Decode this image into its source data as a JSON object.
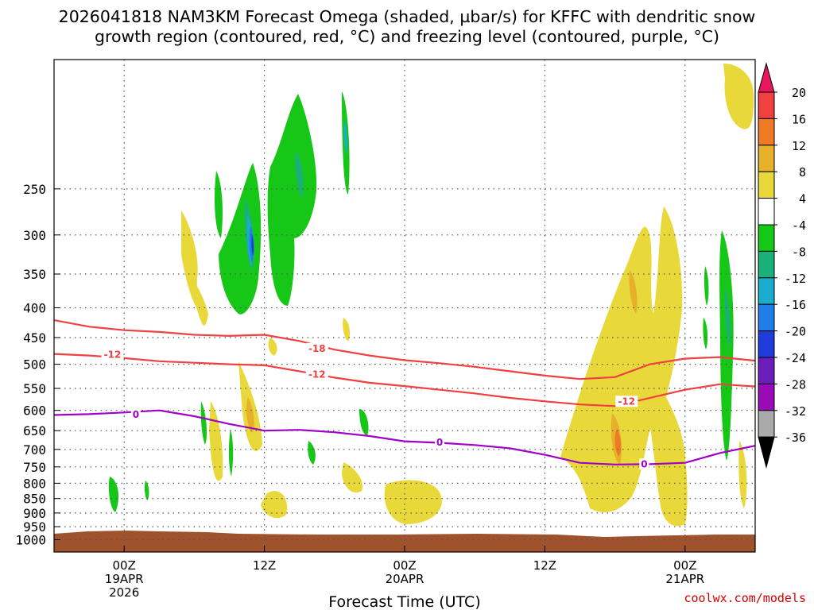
{
  "title": {
    "line1": "2026041818 NAM3KM Forecast Omega (shaded, µbar/s) for KFFC with dendritic snow",
    "line2": "growth region (contoured, red, °C) and freezing level (contoured, purple, °C)"
  },
  "credit": "coolwx.com/models",
  "colors": {
    "red_contour": "#f04040",
    "purple_contour": "#a000c8",
    "ground": "#a0522d",
    "grid": "#555555"
  },
  "chart_data": {
    "type": "heatmap",
    "xlabel": "Forecast Time (UTC)",
    "ylabel": "",
    "x_unit": "hours since 2026-04-18 18Z",
    "xlim": [
      0,
      60
    ],
    "ylim_hPa": [
      1050,
      150
    ],
    "y_scale": "log",
    "grid": true,
    "y_ticks": [
      250,
      300,
      350,
      400,
      450,
      500,
      550,
      600,
      650,
      700,
      750,
      800,
      850,
      900,
      950,
      1000
    ],
    "x_ticks": [
      {
        "x": 6,
        "labels": [
          "00Z",
          "19APR",
          "2026"
        ]
      },
      {
        "x": 18,
        "labels": [
          "12Z",
          "",
          ""
        ]
      },
      {
        "x": 30,
        "labels": [
          "00Z",
          "20APR",
          ""
        ]
      },
      {
        "x": 42,
        "labels": [
          "12Z",
          "",
          ""
        ]
      },
      {
        "x": 54,
        "labels": [
          "00Z",
          "21APR",
          ""
        ]
      }
    ],
    "colorbar": {
      "unit": "µbar/s",
      "labels": [
        "20",
        "16",
        "12",
        "8",
        "4",
        "-4",
        "-8",
        "-12",
        "-16",
        "-20",
        "-24",
        "-28",
        "-32",
        "-36"
      ],
      "colors": [
        "#e8155f",
        "#f04040",
        "#ef7a25",
        "#e6b02a",
        "#e8d83a",
        "#ffffff",
        "#17c717",
        "#1ab07a",
        "#1aaccc",
        "#1f7ee8",
        "#1e3cdb",
        "#6b1ebc",
        "#9a0ab8",
        "#aaaaaa",
        "#000000"
      ]
    },
    "lines": [
      {
        "color": "red",
        "label": "-18",
        "label_at": [
          22.5,
          470
        ],
        "points": [
          [
            0,
            420
          ],
          [
            3,
            431
          ],
          [
            6,
            437
          ],
          [
            9,
            440
          ],
          [
            12,
            445
          ],
          [
            15,
            447
          ],
          [
            18,
            445
          ],
          [
            21,
            456
          ],
          [
            24,
            472
          ],
          [
            27,
            483
          ],
          [
            30,
            492
          ],
          [
            33,
            498
          ],
          [
            36,
            505
          ],
          [
            39,
            514
          ],
          [
            42,
            523
          ],
          [
            45,
            530
          ],
          [
            48,
            526
          ],
          [
            51,
            500
          ],
          [
            54,
            489
          ],
          [
            57,
            486
          ],
          [
            60,
            493
          ]
        ]
      },
      {
        "color": "red",
        "label": "-12",
        "label_at": [
          5,
          481
        ],
        "points": [
          [
            0,
            480
          ],
          [
            3,
            483
          ],
          [
            6,
            488
          ],
          [
            9,
            494
          ],
          [
            12,
            497
          ],
          [
            15,
            500
          ],
          [
            18,
            502
          ],
          [
            21,
            514
          ],
          [
            24,
            527
          ],
          [
            27,
            538
          ],
          [
            30,
            545
          ],
          [
            33,
            553
          ],
          [
            36,
            561
          ],
          [
            39,
            571
          ],
          [
            42,
            579
          ],
          [
            45,
            586
          ],
          [
            48,
            590
          ],
          [
            51,
            571
          ],
          [
            54,
            553
          ],
          [
            57,
            541
          ],
          [
            60,
            546
          ]
        ]
      },
      {
        "color": "red",
        "label": "-12",
        "label_at": [
          22.5,
          521
        ]
      },
      {
        "color": "red",
        "label": "-12",
        "label_at": [
          49,
          579
        ]
      },
      {
        "color": "purple",
        "label": "0",
        "label_at": [
          7,
          610
        ],
        "points": [
          [
            0,
            611
          ],
          [
            3,
            609
          ],
          [
            6,
            605
          ],
          [
            9,
            600
          ],
          [
            12,
            614
          ],
          [
            15,
            633
          ],
          [
            18,
            650
          ],
          [
            21,
            648
          ],
          [
            24,
            654
          ],
          [
            27,
            664
          ],
          [
            30,
            678
          ],
          [
            33,
            682
          ],
          [
            36,
            688
          ],
          [
            39,
            697
          ],
          [
            42,
            715
          ],
          [
            45,
            738
          ],
          [
            48,
            743
          ],
          [
            51,
            742
          ],
          [
            54,
            738
          ],
          [
            57,
            710
          ],
          [
            60,
            690
          ]
        ]
      },
      {
        "color": "purple",
        "label": "0",
        "label_at": [
          33,
          681
        ]
      },
      {
        "color": "purple",
        "label": "0",
        "label_at": [
          50.5,
          742
        ]
      }
    ]
  }
}
